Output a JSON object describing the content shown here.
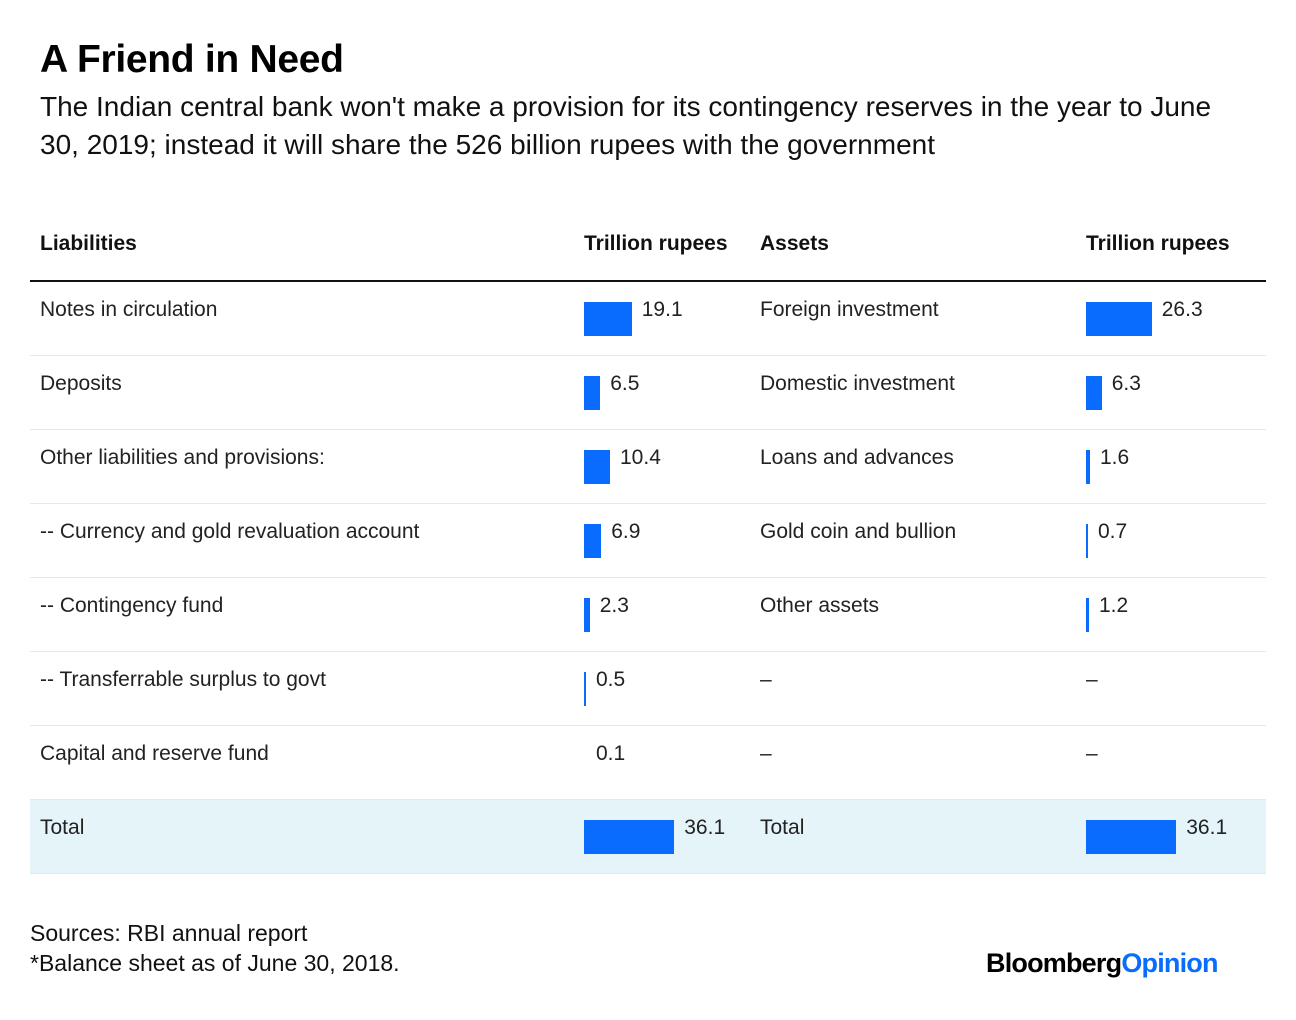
{
  "title": "A Friend in Need",
  "subtitle": "The Indian central bank won't make a provision for its contingency reserves in the year to June 30, 2019; instead it will share the 526 billion rupees with the government",
  "footer": {
    "source": "Sources: RBI annual report",
    "note": "*Balance sheet as of June 30, 2018.",
    "logo_part1": "Bloomberg",
    "logo_part2": "Opinion"
  },
  "colors": {
    "bar": "#0a6cff",
    "total_row_bg": "#e4f4f9"
  },
  "chart_data": {
    "type": "table",
    "title": "A Friend in Need",
    "columns": [
      "Liabilities",
      "Trillion rupees",
      "Assets",
      "Trillion rupees"
    ],
    "unit": "Trillion rupees",
    "rows": [
      {
        "liability": "Notes in circulation",
        "liability_value": 19.1,
        "liability_text": "19.1",
        "asset": "Foreign investment",
        "asset_value": 26.3,
        "asset_text": "26.3"
      },
      {
        "liability": "Deposits",
        "liability_value": 6.5,
        "liability_text": "6.5",
        "asset": "Domestic investment",
        "asset_value": 6.3,
        "asset_text": "6.3"
      },
      {
        "liability": "Other liabilities and provisions:",
        "liability_value": 10.4,
        "liability_text": "10.4",
        "asset": "Loans and advances",
        "asset_value": 1.6,
        "asset_text": "1.6"
      },
      {
        "liability": "-- Currency and gold revaluation account",
        "liability_value": 6.9,
        "liability_text": "6.9",
        "asset": "Gold coin and bullion",
        "asset_value": 0.7,
        "asset_text": "0.7"
      },
      {
        "liability": "-- Contingency fund",
        "liability_value": 2.3,
        "liability_text": "2.3",
        "asset": "Other assets",
        "asset_value": 1.2,
        "asset_text": "1.2"
      },
      {
        "liability": "-- Transferrable surplus to govt",
        "liability_value": 0.5,
        "liability_text": "0.5",
        "asset": "–",
        "asset_value": null,
        "asset_text": "–"
      },
      {
        "liability": "Capital and reserve fund",
        "liability_value": 0.1,
        "liability_text": "0.1",
        "asset": "–",
        "asset_value": null,
        "asset_text": "–"
      },
      {
        "liability": "Total",
        "liability_value": 36.1,
        "liability_text": "36.1",
        "asset": "Total",
        "asset_value": 36.1,
        "asset_text": "36.1",
        "is_total": true
      }
    ]
  }
}
